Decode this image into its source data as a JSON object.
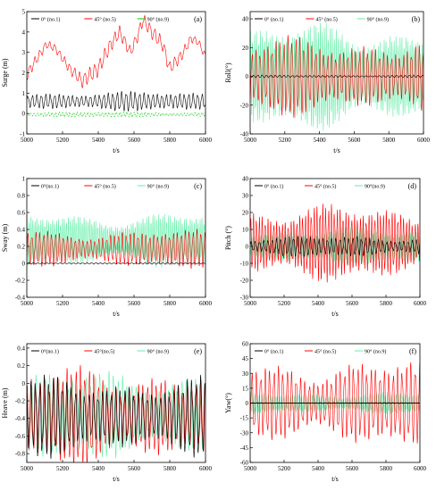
{
  "chart_data": [
    {
      "type": "line",
      "panel_tag": "(a)",
      "title": "",
      "xlabel": "t/s",
      "ylabel": "Surge (m)",
      "xlim": [
        5000,
        6000
      ],
      "ylim": [
        -1,
        5
      ],
      "xticks": [
        5000,
        5200,
        5400,
        5600,
        5800,
        6000
      ],
      "yticks": [
        -1,
        0,
        1,
        2,
        3,
        4,
        5
      ],
      "zero_line": false,
      "legend_position": "top",
      "series": [
        {
          "name": "0° (no.1)",
          "color": "#000000",
          "mean": 0.6,
          "amp": 0.42,
          "period": 25
        },
        {
          "name": "45° (no.5)",
          "color": "#ff0000",
          "mean": 2.6,
          "amp": 0.35,
          "period": 28,
          "envelope_t": [
            5000,
            5050,
            5110,
            5160,
            5240,
            5310,
            5400,
            5470,
            5520,
            5580,
            5620,
            5650,
            5700,
            5760,
            5800,
            5870,
            5920,
            5960,
            6000
          ],
          "envelope_v": [
            1.9,
            2.6,
            3.4,
            3.2,
            2.2,
            1.6,
            2.2,
            3.4,
            4.0,
            3.0,
            3.8,
            4.6,
            4.0,
            3.4,
            2.2,
            2.9,
            3.7,
            3.5,
            2.8
          ]
        },
        {
          "name": "90° (no.9)",
          "color": "#00cc00",
          "mean": -0.05,
          "amp": 0.12,
          "period": 20,
          "dashed": true
        }
      ]
    },
    {
      "type": "line",
      "panel_tag": "(b)",
      "title": "",
      "xlabel": "t/s",
      "ylabel": "Roll(°)",
      "xlim": [
        5000,
        6000
      ],
      "ylim": [
        -40,
        45
      ],
      "xticks": [
        5000,
        5200,
        5400,
        5600,
        5800,
        6000
      ],
      "yticks": [
        -40,
        -20,
        0,
        20,
        40
      ],
      "zero_line": false,
      "legend_position": "top",
      "series": [
        {
          "name": "90° (no.9)",
          "color": "#66eeaa",
          "mean": 0,
          "amp": 33,
          "period": 11.5
        },
        {
          "name": "45° (no.5)",
          "color": "#ff0000",
          "mean": 0,
          "amp": 24,
          "period": 23
        },
        {
          "name": "0° (no.1)",
          "color": "#000000",
          "mean": 0,
          "amp": 0.8,
          "period": 25
        }
      ]
    },
    {
      "type": "line",
      "panel_tag": "(c)",
      "title": "",
      "xlabel": "t/s",
      "ylabel": "Sway (m)",
      "xlim": [
        5000,
        6000
      ],
      "ylim": [
        -0.4,
        1.0
      ],
      "xticks": [
        5000,
        5200,
        5400,
        5600,
        5800,
        6000
      ],
      "yticks": [
        -0.4,
        -0.2,
        0.0,
        0.2,
        0.4,
        0.6,
        0.8,
        1.0
      ],
      "zero_line": false,
      "legend_position": "top",
      "series": [
        {
          "name": "90° (no.9)",
          "color": "#66eeaa",
          "mean": 0.27,
          "amp": 0.3,
          "period": 11
        },
        {
          "name": "45° (no.5)",
          "color": "#ff0000",
          "mean": 0.17,
          "amp": 0.2,
          "period": 22
        },
        {
          "name": "0°(no.1)",
          "color": "#000000",
          "mean": 0.0,
          "amp": 0.01,
          "period": 25
        }
      ]
    },
    {
      "type": "line",
      "panel_tag": "(d)",
      "title": "",
      "xlabel": "t/s",
      "ylabel": "Pitch (°)",
      "xlim": [
        5000,
        6000
      ],
      "ylim": [
        -30,
        40
      ],
      "xticks": [
        5000,
        5200,
        5400,
        5600,
        5800,
        6000
      ],
      "yticks": [
        -30,
        -20,
        -10,
        0,
        10,
        20,
        30,
        40
      ],
      "zero_line": false,
      "legend_position": "top",
      "series": [
        {
          "name": "90°(no.9)",
          "color": "#66eeaa",
          "mean": 0,
          "amp": 10,
          "period": 11
        },
        {
          "name": "45° (no.5)",
          "color": "#ff0000",
          "mean": 2,
          "amp": 20,
          "period": 17
        },
        {
          "name": "0° (no.1)",
          "color": "#000000",
          "mean": 0,
          "amp": 5.5,
          "period": 25
        }
      ]
    },
    {
      "type": "line",
      "panel_tag": "(e)",
      "title": "",
      "xlabel": "t/s",
      "ylabel": "Heave (m)",
      "xlim": [
        5000,
        6000
      ],
      "ylim": [
        -0.9,
        0.45
      ],
      "xticks": [
        5000,
        5200,
        5400,
        5600,
        5800,
        6000
      ],
      "yticks": [
        -0.8,
        -0.6,
        -0.4,
        -0.2,
        0.0,
        0.2,
        0.4
      ],
      "zero_line": false,
      "legend_position": "top",
      "series": [
        {
          "name": "90° (no.9)",
          "color": "#66eeaa",
          "mean": -0.36,
          "amp": 0.45,
          "period": 25.5
        },
        {
          "name": "45°(no.5)",
          "color": "#ff0000",
          "mean": -0.38,
          "amp": 0.5,
          "period": 25
        },
        {
          "name": "0°(no.1)",
          "color": "#000000",
          "mean": -0.38,
          "amp": 0.4,
          "period": 25
        }
      ]
    },
    {
      "type": "line",
      "panel_tag": "(f)",
      "title": "",
      "xlabel": "t/s",
      "ylabel": "Yaw(°)",
      "xlim": [
        5000,
        6000
      ],
      "ylim": [
        -60,
        60
      ],
      "xticks": [
        5000,
        5200,
        5400,
        5600,
        5800,
        6000
      ],
      "yticks": [
        -60,
        -45,
        -30,
        -15,
        0,
        15,
        30,
        45,
        60
      ],
      "zero_line": true,
      "legend_position": "top",
      "series": [
        {
          "name": "90° (no.9)",
          "color": "#66eeaa",
          "mean": 0,
          "amp": 10,
          "period": 13
        },
        {
          "name": "45° (no.5)",
          "color": "#ff0000",
          "mean": 0,
          "amp": 38,
          "period": 26
        },
        {
          "name": "0° (no.1)",
          "color": "#000000",
          "mean": 0,
          "amp": 0.5,
          "period": 25
        }
      ]
    }
  ]
}
